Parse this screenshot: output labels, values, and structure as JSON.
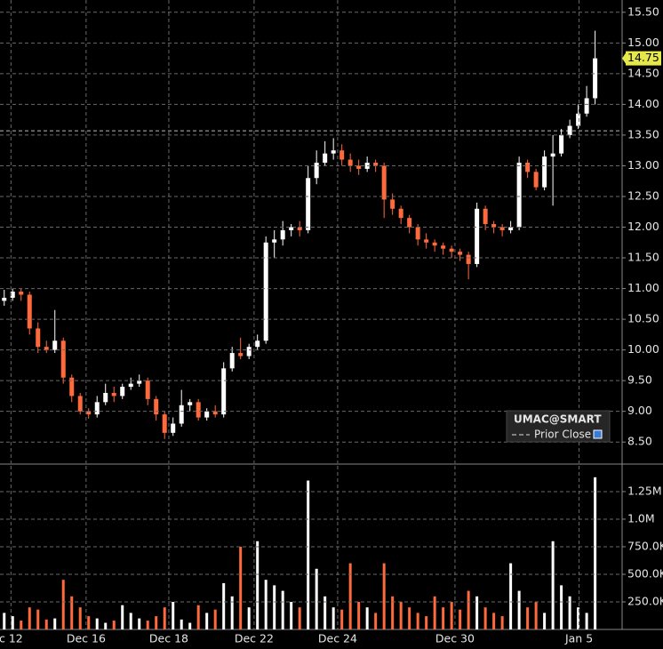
{
  "chart_data": [
    {
      "type": "candlestick",
      "name": "UMAC@SMART",
      "open": [
        10.8,
        10.85,
        10.95,
        10.9,
        10.35,
        10.05,
        10.0,
        10.15,
        9.55,
        9.25,
        9.0,
        8.95,
        9.15,
        9.3,
        9.25,
        9.4,
        9.45,
        9.5,
        9.2,
        8.95,
        8.65,
        8.8,
        9.1,
        9.15,
        8.9,
        9.0,
        8.95,
        9.7,
        9.95,
        9.9,
        10.05,
        10.15,
        11.75,
        11.8,
        11.95,
        12.0,
        11.95,
        12.8,
        13.05,
        13.2,
        13.25,
        13.1,
        13.0,
        12.95,
        13.05,
        13.0,
        12.45,
        12.3,
        12.15,
        12.0,
        11.8,
        11.75,
        11.7,
        11.65,
        11.6,
        11.55,
        11.4,
        12.3,
        12.05,
        12.0,
        11.95,
        12.0,
        13.05,
        12.9,
        12.65,
        13.15,
        13.2,
        13.5,
        13.65,
        13.85,
        14.1
      ],
      "high": [
        10.98,
        11.0,
        11.0,
        10.95,
        10.45,
        10.15,
        10.65,
        10.2,
        9.6,
        9.3,
        9.05,
        9.25,
        9.45,
        9.4,
        9.45,
        9.55,
        9.6,
        9.55,
        9.25,
        9.0,
        8.9,
        9.35,
        9.2,
        9.2,
        9.05,
        9.1,
        9.8,
        10.05,
        10.2,
        10.1,
        10.25,
        11.85,
        11.95,
        12.1,
        12.05,
        12.1,
        13.0,
        13.25,
        13.4,
        13.45,
        13.35,
        13.2,
        13.1,
        13.15,
        13.1,
        13.05,
        12.55,
        12.35,
        12.2,
        12.05,
        11.9,
        11.8,
        11.75,
        11.7,
        11.65,
        11.6,
        12.4,
        12.35,
        12.1,
        12.05,
        12.1,
        13.15,
        13.1,
        12.95,
        13.25,
        13.5,
        13.6,
        13.75,
        14.0,
        14.3,
        15.2
      ],
      "low": [
        10.72,
        10.8,
        10.8,
        10.25,
        9.95,
        9.95,
        9.95,
        9.45,
        9.15,
        8.95,
        8.88,
        8.9,
        9.1,
        9.15,
        9.2,
        9.35,
        9.4,
        9.1,
        8.85,
        8.55,
        8.6,
        8.75,
        9.0,
        8.85,
        8.85,
        8.9,
        8.9,
        9.65,
        9.85,
        9.85,
        10.0,
        10.1,
        11.5,
        11.7,
        11.85,
        11.85,
        11.9,
        12.7,
        13.0,
        13.1,
        13.0,
        12.9,
        12.85,
        12.9,
        12.9,
        12.15,
        12.2,
        12.05,
        11.9,
        11.7,
        11.65,
        11.6,
        11.55,
        11.5,
        11.45,
        11.15,
        11.35,
        11.95,
        11.9,
        11.85,
        11.9,
        11.95,
        12.8,
        12.6,
        12.6,
        12.35,
        13.15,
        13.45,
        13.6,
        13.8,
        14.0
      ],
      "close": [
        10.85,
        10.95,
        10.9,
        10.35,
        10.05,
        10.0,
        10.15,
        9.55,
        9.25,
        9.0,
        8.95,
        9.15,
        9.3,
        9.25,
        9.4,
        9.45,
        9.5,
        9.2,
        8.95,
        8.65,
        8.8,
        9.1,
        9.15,
        8.9,
        9.0,
        8.95,
        9.7,
        9.95,
        9.9,
        10.05,
        10.15,
        11.75,
        11.8,
        11.95,
        12.0,
        11.95,
        12.8,
        13.05,
        13.2,
        13.25,
        13.1,
        13.0,
        12.95,
        13.05,
        13.0,
        12.45,
        12.3,
        12.15,
        12.0,
        11.8,
        11.75,
        11.7,
        11.65,
        11.6,
        11.55,
        11.4,
        12.3,
        12.05,
        12.0,
        11.95,
        12.0,
        13.05,
        12.9,
        12.65,
        13.15,
        13.2,
        13.5,
        13.65,
        13.85,
        14.1,
        14.75
      ],
      "up_color": "#ffffff",
      "down_color": "#ff6a3c",
      "ylim": [
        8.17,
        15.7
      ],
      "yticks": [
        {
          "value": 8.5,
          "label": "8.50"
        },
        {
          "value": 9,
          "label": "9.00"
        },
        {
          "value": 9.5,
          "label": "9.50"
        },
        {
          "value": 10,
          "label": "10.00"
        },
        {
          "value": 10.5,
          "label": "10.50"
        },
        {
          "value": 11,
          "label": "11.00"
        },
        {
          "value": 11.5,
          "label": "11.50"
        },
        {
          "value": 12,
          "label": "12.00"
        },
        {
          "value": 12.5,
          "label": "12.50"
        },
        {
          "value": 13,
          "label": "13.00"
        },
        {
          "value": 13.5,
          "label": "13.50"
        },
        {
          "value": 14,
          "label": "14.00"
        },
        {
          "value": 14.5,
          "label": "14.50"
        },
        {
          "value": 15,
          "label": "15.00"
        },
        {
          "value": 15.5,
          "label": "15.50"
        }
      ],
      "xlim": [
        -0.5,
        73.2
      ],
      "xticks": [
        {
          "value": 0.8,
          "label": "c 12"
        },
        {
          "value": 9.7,
          "label": "Dec 16"
        },
        {
          "value": 19.5,
          "label": "Dec 18"
        },
        {
          "value": 29.6,
          "label": "Dec 22"
        },
        {
          "value": 39.5,
          "label": "Dec 24"
        },
        {
          "value": 53.4,
          "label": "Dec 30"
        },
        {
          "value": 68.1,
          "label": "Jan 5"
        }
      ],
      "last_price": 14.75,
      "last_price_color": "#e6e84a",
      "prior_close": {
        "name": "Prior Close",
        "value": 13.57
      },
      "grid": true
    },
    {
      "type": "bar",
      "values": [
        150000,
        120000,
        80000,
        200000,
        180000,
        90000,
        100000,
        450000,
        300000,
        200000,
        120000,
        100000,
        60000,
        80000,
        220000,
        150000,
        100000,
        80000,
        120000,
        200000,
        250000,
        90000,
        60000,
        220000,
        150000,
        180000,
        420000,
        300000,
        750000,
        200000,
        800000,
        450000,
        400000,
        350000,
        250000,
        200000,
        1350000,
        550000,
        300000,
        200000,
        180000,
        600000,
        250000,
        200000,
        150000,
        600000,
        300000,
        250000,
        200000,
        150000,
        120000,
        300000,
        200000,
        250000,
        180000,
        350000,
        300000,
        200000,
        150000,
        120000,
        600000,
        350000,
        200000,
        250000,
        150000,
        800000,
        400000,
        300000,
        200000,
        150000,
        1380000
      ],
      "ylim": [
        0,
        1435000
      ],
      "yticks": [
        {
          "value": 250000,
          "label": "250.0K"
        },
        {
          "value": 500000,
          "label": "500.0K"
        },
        {
          "value": 750000,
          "label": "750.0K"
        },
        {
          "value": 1000000,
          "label": "1.0M"
        },
        {
          "value": 1250000,
          "label": "1.25M"
        }
      ],
      "grid": true
    }
  ]
}
